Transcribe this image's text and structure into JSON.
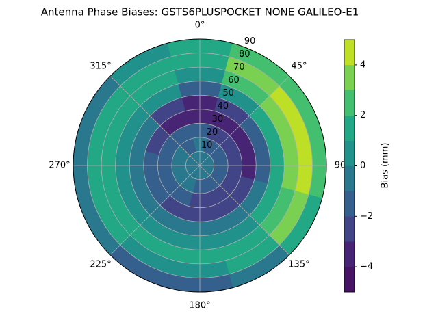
{
  "chart_data": {
    "type": "polar_contour",
    "title": "Antenna Phase Biases: GSTS6PLUSPOCKET NONE GALILEO-E1",
    "colorbar_label": "Bias (mm)",
    "azimuth": [
      0,
      30,
      60,
      90,
      120,
      150,
      180,
      210,
      240,
      270,
      300,
      330
    ],
    "elevation": [
      5,
      15,
      25,
      35,
      45,
      55,
      65,
      75,
      85
    ],
    "z": [
      [
        -0.5,
        -0.5,
        -1.5,
        -3.5,
        -3.5,
        -1.5,
        0.5,
        1.5,
        1.5
      ],
      [
        -0.5,
        -1.5,
        -2.5,
        -3.5,
        -2.5,
        0.5,
        2.5,
        3.5,
        2.5
      ],
      [
        -0.5,
        -1.5,
        -2.5,
        -3.5,
        -1.5,
        1.5,
        3.5,
        4.5,
        2.5
      ],
      [
        -0.5,
        -1.5,
        -2.5,
        -3.5,
        -1.5,
        1.5,
        3.5,
        4.5,
        2.5
      ],
      [
        -0.5,
        -1.5,
        -2.5,
        -2.5,
        -0.5,
        1.5,
        2.5,
        3.5,
        1.5
      ],
      [
        -0.5,
        -1.5,
        -2.5,
        -2.5,
        -0.5,
        0.5,
        1.5,
        1.5,
        -0.5
      ],
      [
        -0.5,
        -1.5,
        -2.5,
        -2.5,
        -0.5,
        0.5,
        1.5,
        0.5,
        -1.5
      ],
      [
        -0.5,
        -0.5,
        -1.5,
        -2.5,
        -0.5,
        0.5,
        1.5,
        0.5,
        -1.5
      ],
      [
        -0.5,
        -0.5,
        -1.5,
        -1.5,
        -0.5,
        0.5,
        1.5,
        1.5,
        -0.5
      ],
      [
        -0.5,
        -0.5,
        -1.5,
        -1.5,
        -0.5,
        0.5,
        1.5,
        1.5,
        -0.5
      ],
      [
        -0.5,
        -0.5,
        -1.5,
        -2.5,
        -0.5,
        0.5,
        1.5,
        1.5,
        -0.5
      ],
      [
        -0.5,
        -1.5,
        -1.5,
        -3.5,
        -2.5,
        0.5,
        1.5,
        1.5,
        0.5
      ]
    ],
    "levels": [
      -5,
      -4,
      -3,
      -2,
      -1,
      0,
      1,
      2,
      3,
      4,
      5
    ],
    "colors": [
      "#471365",
      "#482475",
      "#414487",
      "#355f8d",
      "#2a788e",
      "#21918c",
      "#22a884",
      "#44bf70",
      "#7ad151",
      "#bddf26"
    ],
    "rlim": [
      0,
      90
    ],
    "rticks": [
      10,
      20,
      30,
      40,
      50,
      60,
      70,
      80,
      90
    ],
    "thetaticks": [
      {
        "value": 0,
        "label": "0°"
      },
      {
        "value": 45,
        "label": "45°"
      },
      {
        "value": 90,
        "label": "90"
      },
      {
        "value": 135,
        "label": "135°"
      },
      {
        "value": 180,
        "label": "180°"
      },
      {
        "value": 225,
        "label": "225°"
      },
      {
        "value": 270,
        "label": "270°"
      },
      {
        "value": 315,
        "label": "315°"
      }
    ],
    "cbar_ticks": [
      {
        "value": -4,
        "label": "−4"
      },
      {
        "value": -2,
        "label": "−2"
      },
      0,
      2,
      4
    ],
    "grid": true
  }
}
